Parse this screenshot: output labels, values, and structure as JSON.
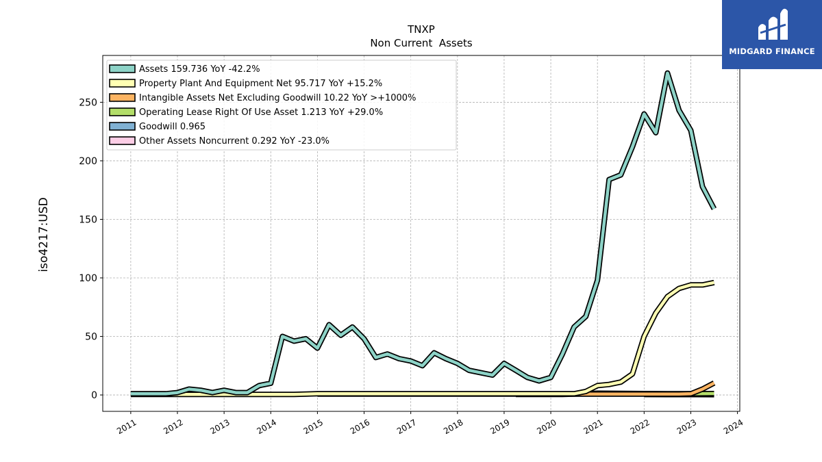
{
  "chart_data": {
    "type": "line",
    "title": "TNXP",
    "subtitle": "Non Current  Assets",
    "ylabel": "iso4217:USD",
    "xlim": [
      2010.4,
      2024.05
    ],
    "ylim": [
      -14,
      290
    ],
    "x_ticks": [
      2011,
      2012,
      2013,
      2014,
      2015,
      2016,
      2017,
      2018,
      2019,
      2020,
      2021,
      2022,
      2023,
      2024
    ],
    "y_ticks": [
      0,
      50,
      100,
      150,
      200,
      250
    ],
    "grid": true,
    "legend_position": "top-left",
    "series": [
      {
        "name": "Assets",
        "legend": "Assets  159.736 YoY -42.2%",
        "color": "#8dd3c7",
        "x": [
          2011.0,
          2011.25,
          2011.5,
          2011.75,
          2012.0,
          2012.25,
          2012.5,
          2012.75,
          2013.0,
          2013.25,
          2013.5,
          2013.75,
          2014.0,
          2014.25,
          2014.5,
          2014.75,
          2015.0,
          2015.25,
          2015.5,
          2015.75,
          2016.0,
          2016.25,
          2016.5,
          2016.75,
          2017.0,
          2017.25,
          2017.5,
          2017.75,
          2018.0,
          2018.25,
          2018.5,
          2018.75,
          2019.0,
          2019.25,
          2019.5,
          2019.75,
          2020.0,
          2020.25,
          2020.5,
          2020.75,
          2021.0,
          2021.25,
          2021.5,
          2021.75,
          2022.0,
          2022.25,
          2022.5,
          2022.75,
          2023.0,
          2023.25,
          2023.5
        ],
        "values": [
          1,
          1,
          1,
          1,
          2,
          5,
          4,
          2,
          4,
          2,
          2,
          8,
          10,
          50,
          46,
          48,
          40,
          60,
          51,
          58,
          48,
          32,
          35,
          31,
          29,
          25,
          36,
          31,
          27,
          21,
          19,
          17,
          27,
          21,
          15,
          12,
          15,
          35,
          58,
          67,
          98,
          184,
          188,
          212,
          240,
          224,
          275,
          243,
          226,
          178,
          159
        ]
      },
      {
        "name": "Property Plant And Equipment Net",
        "legend": "Property Plant And Equipment Net  95.717 YoY +15.2%",
        "color": "#ffffb3",
        "x": [
          2011.0,
          2011.5,
          2012.0,
          2012.5,
          2013.0,
          2013.5,
          2014.0,
          2014.5,
          2015.0,
          2015.5,
          2016.0,
          2016.5,
          2017.0,
          2017.5,
          2018.0,
          2018.5,
          2019.0,
          2019.5,
          2020.0,
          2020.25,
          2020.5,
          2020.75,
          2021.0,
          2021.25,
          2021.5,
          2021.75,
          2022.0,
          2022.25,
          2022.5,
          2022.75,
          2023.0,
          2023.25,
          2023.5
        ],
        "values": [
          0.5,
          0.5,
          0.5,
          0.5,
          0.5,
          0.5,
          0.5,
          0.5,
          1,
          1,
          1,
          1,
          1,
          1,
          1,
          1,
          1,
          1,
          1,
          1,
          1,
          3,
          8,
          9,
          11,
          18,
          50,
          70,
          84,
          91,
          94,
          94,
          96
        ]
      },
      {
        "name": "Intangible Assets Net Excluding Goodwill",
        "legend": "Intangible Assets Net Excluding Goodwill  10.22 YoY >+1000%",
        "color": "#fdb462",
        "x": [
          2015.0,
          2016.0,
          2017.0,
          2018.0,
          2019.0,
          2020.0,
          2021.0,
          2022.0,
          2022.75,
          2023.0,
          2023.25,
          2023.5
        ],
        "values": [
          0.8,
          0.8,
          0.8,
          0.8,
          0.8,
          0.8,
          0.8,
          0.8,
          0.8,
          1.0,
          5,
          10.22
        ]
      },
      {
        "name": "Operating Lease Right Of Use Asset",
        "legend": "Operating Lease Right Of Use Asset  1.213 YoY +29.0%",
        "color": "#b3de69",
        "x": [
          2019.25,
          2019.75,
          2020.25,
          2020.75,
          2021.0,
          2021.5,
          2022.0,
          2022.5,
          2023.0,
          2023.5
        ],
        "values": [
          0.5,
          0.5,
          0.5,
          1.0,
          1.5,
          1.4,
          1.2,
          1.1,
          1.0,
          1.213
        ]
      },
      {
        "name": "Goodwill",
        "legend": "Goodwill  0.965",
        "color": "#80b1d3",
        "x": [
          2022.0,
          2022.5,
          2023.0,
          2023.5
        ],
        "values": [
          0.965,
          0.965,
          0.965,
          0.965
        ]
      },
      {
        "name": "Other Assets Noncurrent",
        "legend": "Other Assets Noncurrent  0.292 YoY -23.0%",
        "color": "#fccde5",
        "x": [
          2022.0,
          2022.5,
          2023.0,
          2023.5
        ],
        "values": [
          0.38,
          0.35,
          0.3,
          0.292
        ]
      }
    ]
  },
  "logo": {
    "text": "MIDGARD FINANCE",
    "color": "#2c56a8"
  }
}
